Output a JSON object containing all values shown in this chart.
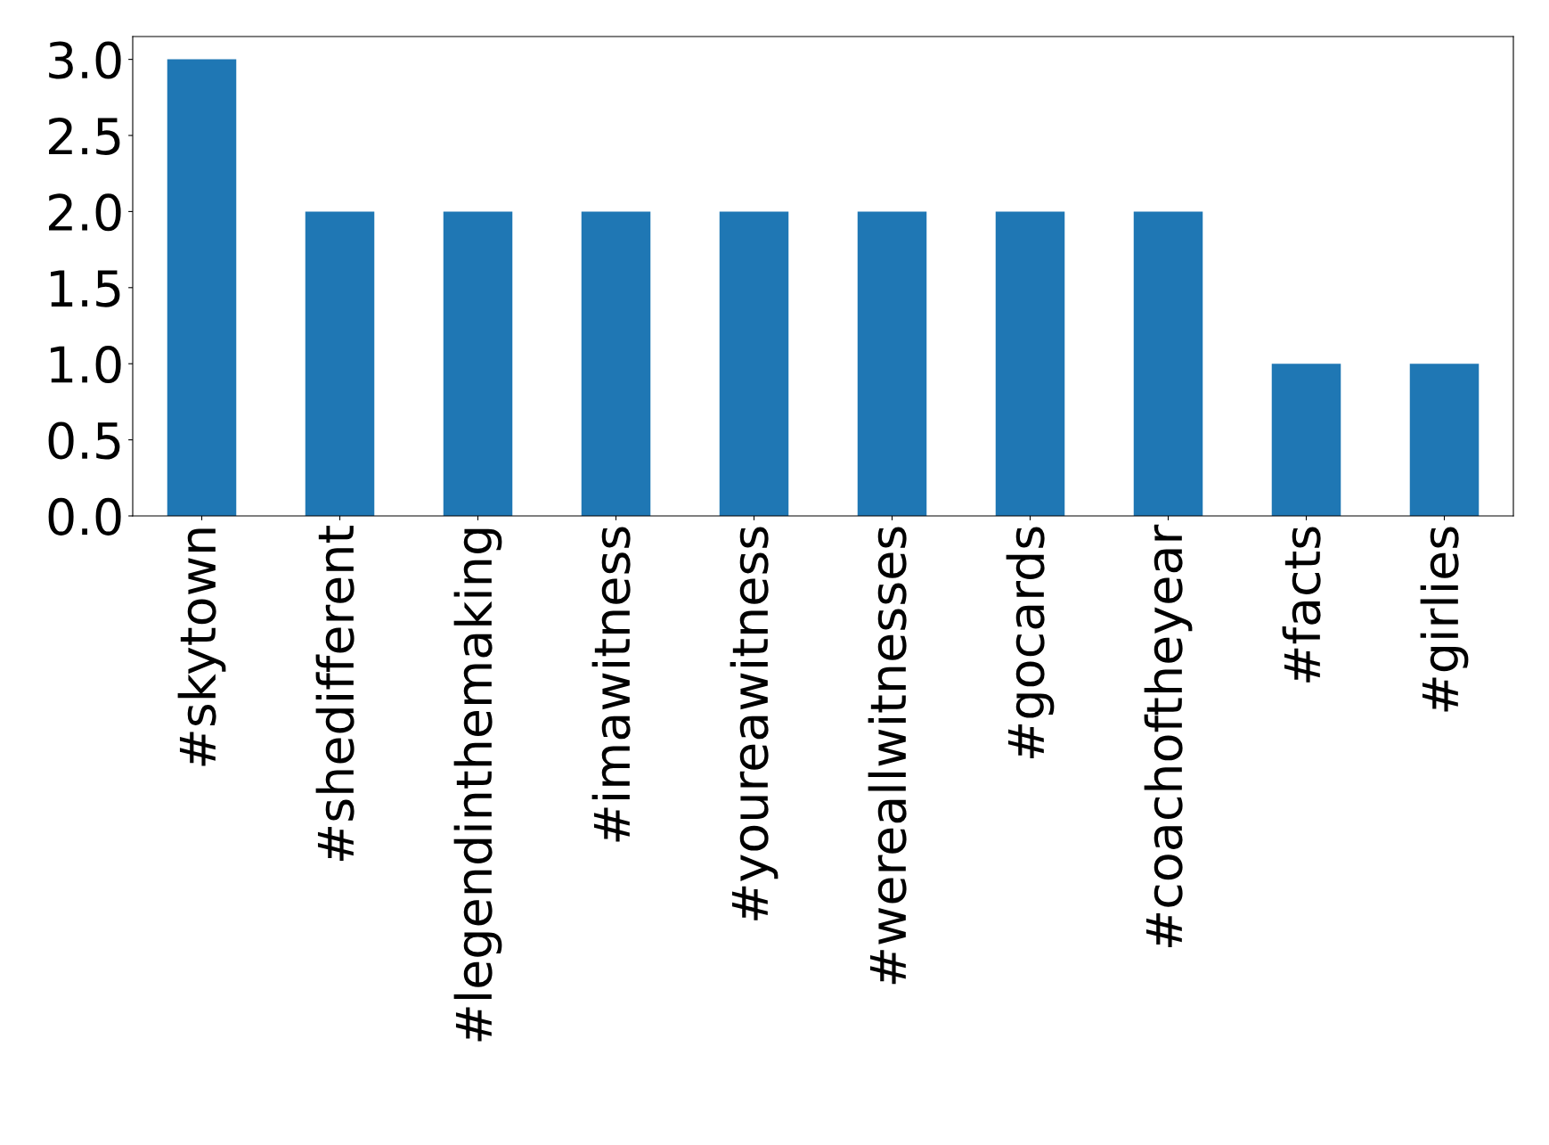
{
  "chart_data": {
    "type": "bar",
    "categories": [
      "#skytown",
      "#shedifferent",
      "#legendinthemaking",
      "#imawitness",
      "#youreawitness",
      "#wereallwitnesses",
      "#gocards",
      "#coachoftheyear",
      "#facts",
      "#girlies"
    ],
    "values": [
      3,
      2,
      2,
      2,
      2,
      2,
      2,
      2,
      1,
      1
    ],
    "color": "#1f77b4",
    "ylim": [
      0,
      3.15
    ],
    "yticks": [
      {
        "value": 0,
        "label": "0.0"
      },
      {
        "value": 0.5,
        "label": "0.5"
      },
      {
        "value": 1,
        "label": "1.0"
      },
      {
        "value": 1.5,
        "label": "1.5"
      },
      {
        "value": 2,
        "label": "2.0"
      },
      {
        "value": 2.5,
        "label": "2.5"
      },
      {
        "value": 3,
        "label": "3.0"
      }
    ],
    "grid": false,
    "legend": false
  }
}
